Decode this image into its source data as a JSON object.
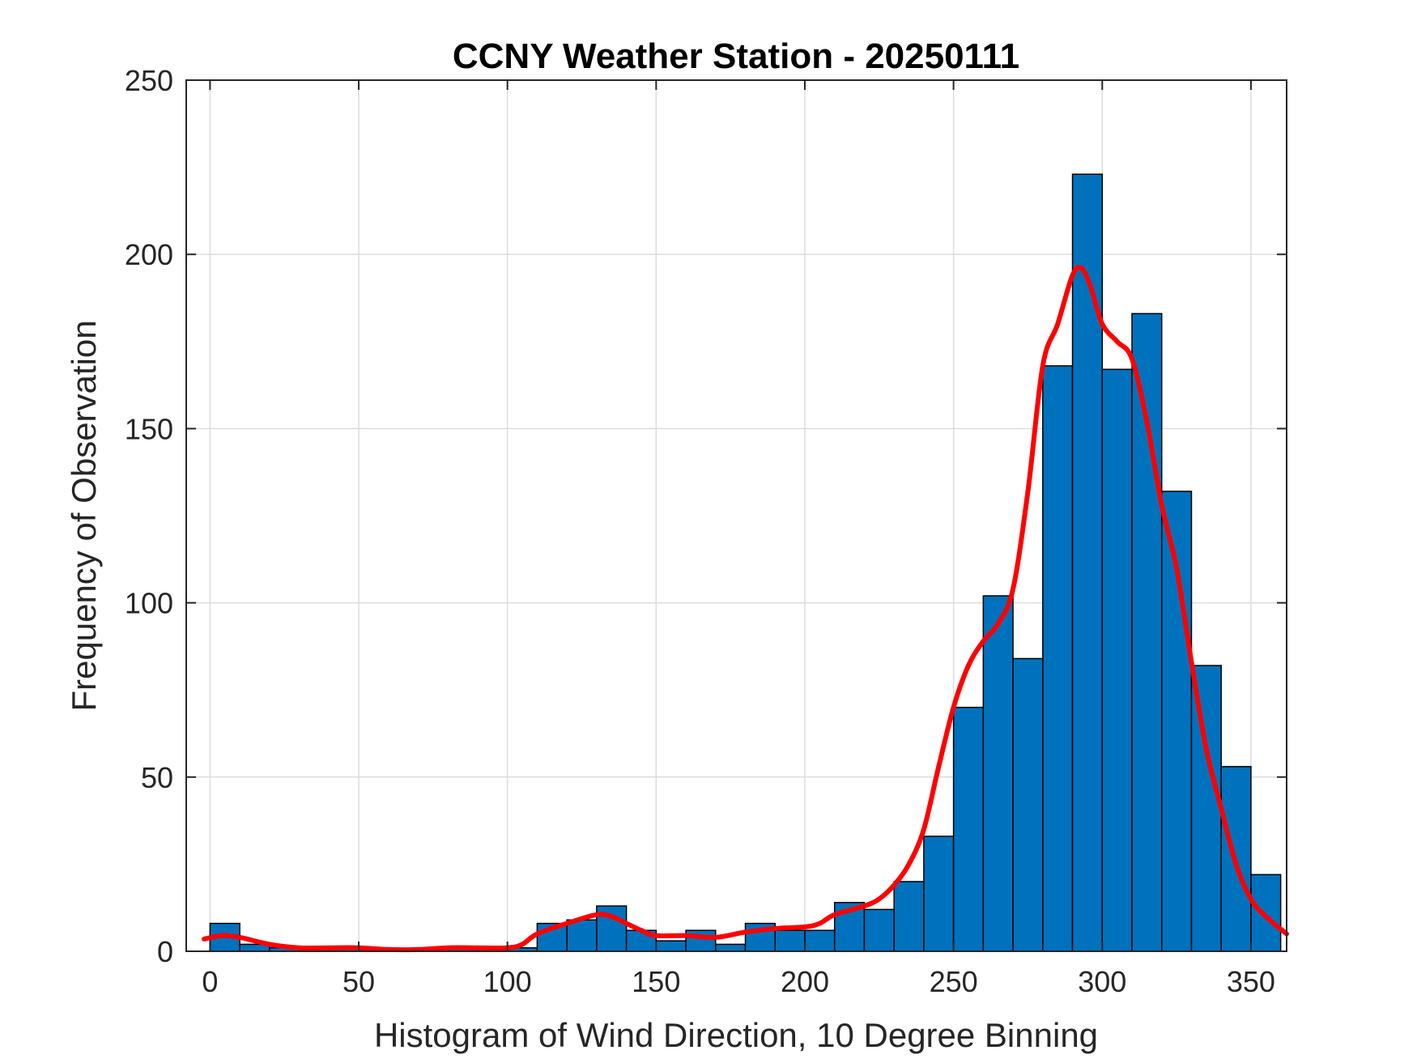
{
  "chart_data": {
    "type": "bar",
    "title": "CCNY Weather Station - 20250111",
    "xlabel": "Histogram of Wind Direction, 10 Degree Binning",
    "ylabel": "Frequency of Observation",
    "xlim": [
      -8,
      362
    ],
    "ylim": [
      0,
      250
    ],
    "xticks": [
      0,
      50,
      100,
      150,
      200,
      250,
      300,
      350
    ],
    "yticks": [
      0,
      50,
      100,
      150,
      200,
      250
    ],
    "grid": true,
    "bin_width": 10,
    "bin_edges": [
      0,
      10,
      20,
      30,
      40,
      50,
      60,
      70,
      80,
      90,
      100,
      110,
      120,
      130,
      140,
      150,
      160,
      170,
      180,
      190,
      200,
      210,
      220,
      230,
      240,
      250,
      260,
      270,
      280,
      290,
      300,
      310,
      320,
      330,
      340,
      350,
      360
    ],
    "counts": [
      8,
      2,
      1,
      1,
      1,
      1,
      0,
      0,
      1,
      1,
      1,
      8,
      9,
      13,
      6,
      3,
      6,
      2,
      8,
      6,
      6,
      14,
      12,
      20,
      33,
      70,
      102,
      84,
      168,
      223,
      167,
      183,
      132,
      82,
      53,
      22
    ],
    "bar_color": "#0072BD",
    "curve_color": "#FF0000",
    "curve": {
      "x": [
        -2,
        4,
        10,
        20,
        30,
        40,
        50,
        60,
        70,
        80,
        90,
        100,
        105,
        110,
        120,
        130,
        135,
        140,
        145,
        150,
        160,
        170,
        180,
        190,
        200,
        205,
        210,
        220,
        225,
        230,
        235,
        240,
        245,
        250,
        255,
        260,
        265,
        270,
        275,
        280,
        285,
        290,
        293,
        296,
        300,
        305,
        310,
        315,
        320,
        325,
        330,
        335,
        340,
        345,
        350,
        355,
        362
      ],
      "y": [
        3.5,
        4.5,
        4,
        2,
        1,
        1,
        1,
        0.5,
        0.5,
        1,
        1,
        1,
        2,
        5,
        8,
        10.5,
        10,
        8,
        6,
        4.5,
        4.5,
        4,
        5.5,
        6.5,
        7,
        8,
        10.5,
        13,
        15,
        19,
        25,
        35,
        53,
        70,
        82,
        89,
        94,
        104,
        132,
        168,
        180,
        194,
        196,
        191,
        180,
        175,
        170,
        152,
        128,
        110,
        83,
        58,
        41,
        25,
        15,
        10,
        5
      ]
    }
  }
}
